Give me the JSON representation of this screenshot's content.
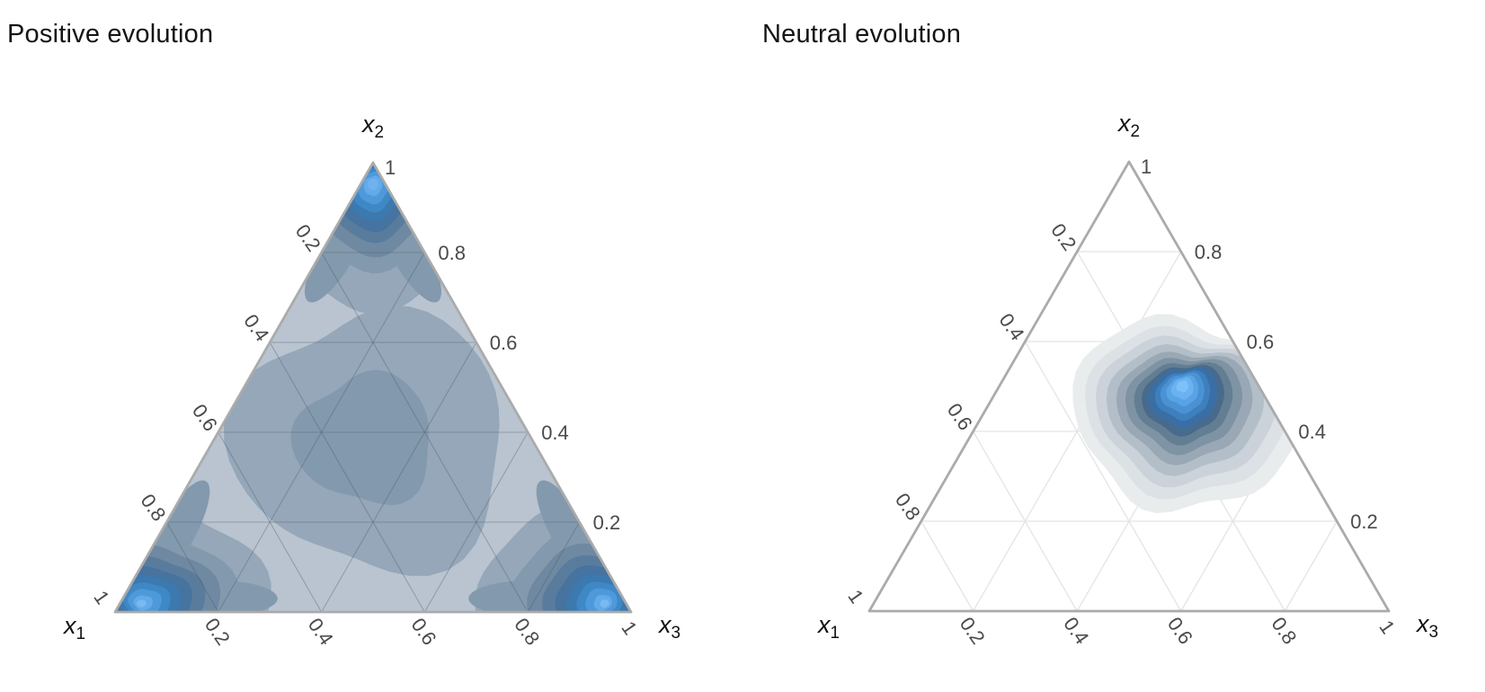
{
  "chart_data": {
    "type": "ternary_density_contour",
    "figure_description": "Two ternary simplex filled-contour density plots",
    "tick_values": [
      "0.2",
      "0.4",
      "0.6",
      "0.8",
      "1"
    ],
    "grid_values": [
      0.2,
      0.4,
      0.6,
      0.8
    ],
    "colors": {
      "border": "#ababab",
      "tick_text": "#4a4a4a",
      "axis_text": "#111111",
      "title_text": "#141414",
      "background": "#ffffff"
    },
    "panels": [
      {
        "id": "positive",
        "title": "Positive evolution",
        "base_fill": "#b9c4d0",
        "grid_color": "#4e5c68",
        "grid_width": 1.1,
        "grid_opacity": 0.38,
        "axis_labels": [
          {
            "pos": "bottom-left",
            "base": "x",
            "sub": "1"
          },
          {
            "pos": "top",
            "base": "x",
            "sub": "2"
          },
          {
            "pos": "bottom-right",
            "base": "x",
            "sub": "3"
          }
        ],
        "density_modes": [
          {
            "x1": 1,
            "x2": 0,
            "x3": 0
          },
          {
            "x1": 0,
            "x2": 1,
            "x3": 0
          },
          {
            "x1": 0,
            "x2": 0,
            "x3": 1
          }
        ],
        "plateau_center": {
          "x1": 0.33,
          "x2": 0.33,
          "x3": 0.33
        },
        "contours": {
          "blobs": [
            {
              "name": "central-plateau",
              "center": [
                0.31,
                0.38,
                0.31
              ],
              "drift": [
                -8,
                -2
              ],
              "sx": 1.0,
              "sy": 1.0,
              "jitter": 0.3,
              "wobble": [
                [
                  0.1,
                  3,
                  4.71
                ],
                [
                  0.035,
                  2,
                  1.2
                ],
                [
                  0.03,
                  5,
                  2.8
                ]
              ],
              "rings": [
                {
                  "r": 0.257,
                  "color": "#95a7b9"
                },
                {
                  "r": 0.129,
                  "color": "#8399ad"
                }
              ]
            },
            {
              "name": "mode-x2-apex",
              "center": [
                0.04,
                0.92,
                0.04
              ],
              "drift": [
                0,
                -16
              ],
              "sx": 0.92,
              "sy": 1.05,
              "jitter": 0.15,
              "wobble": [
                [
                  0.05,
                  2,
                  1.1
                ],
                [
                  0.04,
                  3,
                  2.6
                ],
                [
                  0.03,
                  5,
                  0.4
                ]
              ],
              "rings": [
                {
                  "r": 0.21,
                  "color": "#95a7b9"
                },
                {
                  "r": 0.139,
                  "color": "#8399ad"
                },
                {
                  "r": 0.113,
                  "color": "#6e89a1"
                },
                {
                  "r": 0.09,
                  "color": "#597c9d"
                },
                {
                  "r": 0.073,
                  "color": "#46739f"
                },
                {
                  "r": 0.057,
                  "color": "#3b79af"
                },
                {
                  "r": 0.043,
                  "color": "#3f88c6"
                },
                {
                  "r": 0.031,
                  "color": "#4e99d9"
                },
                {
                  "r": 0.019,
                  "color": "#63aae8"
                },
                {
                  "r": 0.011,
                  "color": "#6fb2ef"
                }
              ]
            },
            {
              "name": "mode-x1-corner",
              "center": [
                0.9,
                0.035,
                0.065
              ],
              "drift": [
                -18,
                8
              ],
              "sx": 1.1,
              "sy": 0.95,
              "jitter": 0.15,
              "wobble": [
                [
                  0.05,
                  2,
                  0.3
                ],
                [
                  0.04,
                  3,
                  1.9
                ],
                [
                  0.03,
                  5,
                  3.3
                ]
              ],
              "rings": [
                {
                  "r": 0.191,
                  "color": "#95a7b9"
                },
                {
                  "r": 0.139,
                  "color": "#8399ad"
                },
                {
                  "r": 0.111,
                  "color": "#6e89a1"
                },
                {
                  "r": 0.089,
                  "color": "#597c9d"
                },
                {
                  "r": 0.07,
                  "color": "#46739f"
                },
                {
                  "r": 0.054,
                  "color": "#3b79af"
                },
                {
                  "r": 0.04,
                  "color": "#3f88c6"
                },
                {
                  "r": 0.028,
                  "color": "#4e99d9"
                },
                {
                  "r": 0.016,
                  "color": "#63aae8"
                },
                {
                  "r": 0.008,
                  "color": "#79b9f3"
                }
              ]
            },
            {
              "name": "mode-x3-corner",
              "center": [
                0.065,
                0.035,
                0.9
              ],
              "drift": [
                18,
                8
              ],
              "sx": 1.1,
              "sy": 0.95,
              "jitter": 0.15,
              "wobble": [
                [
                  0.05,
                  2,
                  2.1
                ],
                [
                  0.04,
                  3,
                  0.7
                ],
                [
                  0.03,
                  5,
                  4.4
                ]
              ],
              "rings": [
                {
                  "r": 0.191,
                  "color": "#95a7b9"
                },
                {
                  "r": 0.139,
                  "color": "#8399ad"
                },
                {
                  "r": 0.111,
                  "color": "#6e89a1"
                },
                {
                  "r": 0.089,
                  "color": "#597c9d"
                },
                {
                  "r": 0.07,
                  "color": "#46739f"
                },
                {
                  "r": 0.054,
                  "color": "#3b79af"
                },
                {
                  "r": 0.04,
                  "color": "#3f88c6"
                },
                {
                  "r": 0.028,
                  "color": "#4e99d9"
                },
                {
                  "r": 0.016,
                  "color": "#63aae8"
                },
                {
                  "r": 0.008,
                  "color": "#79b9f3"
                }
              ]
            }
          ],
          "tongues": [
            {
              "center": [
                0.8,
                0.17,
                0.03
              ],
              "rx": 0.122,
              "ry": 0.036,
              "rot": -60,
              "color": "#8399ad"
            },
            {
              "center": [
                0.8,
                0.03,
                0.17
              ],
              "rx": 0.13,
              "ry": 0.036,
              "rot": 0,
              "color": "#8399ad"
            },
            {
              "center": [
                0.03,
                0.17,
                0.8
              ],
              "rx": 0.122,
              "ry": 0.036,
              "rot": 60,
              "color": "#8399ad"
            },
            {
              "center": [
                0.17,
                0.03,
                0.8
              ],
              "rx": 0.13,
              "ry": 0.036,
              "rot": 0,
              "color": "#8399ad"
            },
            {
              "center": [
                0.17,
                0.8,
                0.03
              ],
              "rx": 0.11,
              "ry": 0.034,
              "rot": -60,
              "color": "#8399ad"
            },
            {
              "center": [
                0.03,
                0.8,
                0.17
              ],
              "rx": 0.11,
              "ry": 0.034,
              "rot": 60,
              "color": "#8399ad"
            }
          ]
        }
      },
      {
        "id": "neutral",
        "title": "Neutral evolution",
        "base_fill": "#ffffff",
        "grid_color": "#e2e4e6",
        "grid_width": 1.3,
        "grid_opacity": 1,
        "axis_labels": [
          {
            "pos": "bottom-left",
            "base": "x",
            "sub": "1"
          },
          {
            "pos": "top",
            "base": "x",
            "sub": "2"
          },
          {
            "pos": "bottom-right",
            "base": "x",
            "sub": "3"
          }
        ],
        "density_modes": [
          {
            "x1": 0.17,
            "x2": 0.44,
            "x3": 0.39
          }
        ],
        "contours": {
          "blobs": [
            {
              "name": "single-mode",
              "center": [
                0.17,
                0.44,
                0.39
              ],
              "drift": [
                -4,
                -30
              ],
              "sx": 1.0,
              "sy": 0.9,
              "jitter": 0.22,
              "wobble": [
                [
                  0.06,
                  2,
                  0.9
                ],
                [
                  0.055,
                  3,
                  2.2
                ],
                [
                  0.04,
                  5,
                  4.2
                ],
                [
                  0.025,
                  7,
                  1.0
                ]
              ],
              "rings": [
                {
                  "r": 0.211,
                  "color": "#e9eced"
                },
                {
                  "r": 0.185,
                  "color": "#dce1e6"
                },
                {
                  "r": 0.163,
                  "color": "#cbd2d9"
                },
                {
                  "r": 0.142,
                  "color": "#b3bfc8"
                },
                {
                  "r": 0.123,
                  "color": "#99a8b4"
                },
                {
                  "r": 0.106,
                  "color": "#7e93a4"
                },
                {
                  "r": 0.09,
                  "color": "#637e93"
                },
                {
                  "r": 0.076,
                  "color": "#486b8d"
                },
                {
                  "r": 0.064,
                  "color": "#396fa5"
                },
                {
                  "r": 0.052,
                  "color": "#3d80bd"
                },
                {
                  "r": 0.042,
                  "color": "#4a92d3"
                },
                {
                  "r": 0.031,
                  "color": "#59a3e5"
                },
                {
                  "r": 0.022,
                  "color": "#6ab2f0"
                },
                {
                  "r": 0.012,
                  "color": "#7dc0fa"
                }
              ]
            }
          ],
          "tongues": []
        }
      }
    ]
  }
}
